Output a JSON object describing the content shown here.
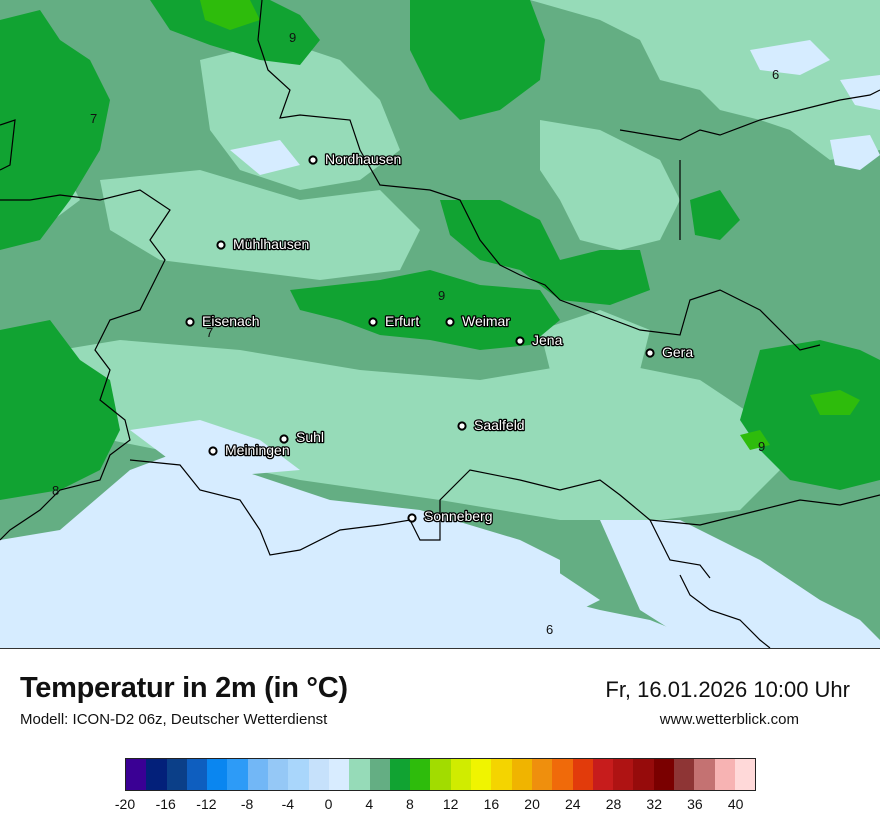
{
  "header": {
    "title": "Temperatur in 2m (in °C)",
    "model": "Modell: ICON-D2 06z, Deutscher Wetterdienst",
    "datetime": "Fr, 16.01.2026 10:00 Uhr",
    "website": "www.wetterblick.com"
  },
  "map": {
    "cities": [
      {
        "name": "Nordhausen",
        "key": "nordhausen"
      },
      {
        "name": "Mühlhausen",
        "key": "muehlhausen"
      },
      {
        "name": "Eisenach",
        "key": "eisenach"
      },
      {
        "name": "Erfurt",
        "key": "erfurt"
      },
      {
        "name": "Weimar",
        "key": "weimar"
      },
      {
        "name": "Jena",
        "key": "jena"
      },
      {
        "name": "Gera",
        "key": "gera"
      },
      {
        "name": "Saalfeld",
        "key": "saalfeld"
      },
      {
        "name": "Suhl",
        "key": "suhl"
      },
      {
        "name": "Meiningen",
        "key": "meiningen"
      },
      {
        "name": "Sonneberg",
        "key": "sonneberg"
      }
    ],
    "isotherm_labels": [
      "9",
      "6",
      "7",
      "9",
      "7",
      "9",
      "8",
      "6"
    ],
    "temperature_colors": {
      "2-4": "#d6ecff",
      "4-6": "#96dbb8",
      "6-8": "#64ae83",
      "8-10": "#11a332",
      "10-12": "#2ebc0c"
    }
  },
  "legend": {
    "colors": [
      "#3a0094",
      "#03207a",
      "#0b3f88",
      "#0e5ebf",
      "#0a86f0",
      "#2d9bf7",
      "#72b7f6",
      "#95c8f6",
      "#a9d6fb",
      "#c6e1fb",
      "#d8ecff",
      "#96dbb8",
      "#64ae83",
      "#11a332",
      "#2ebc0c",
      "#a2dc00",
      "#d0ec00",
      "#f0f400",
      "#f4d400",
      "#f0b400",
      "#ef8f0d",
      "#f06a0a",
      "#e23b0b",
      "#c71c1c",
      "#af1313",
      "#960b0b",
      "#7a0000",
      "#8e3535",
      "#c47272",
      "#f7b3b3",
      "#ffd9d9"
    ],
    "ticks": [
      "-20",
      "-16",
      "-12",
      "-8",
      "-4",
      "0",
      "4",
      "8",
      "12",
      "16",
      "20",
      "24",
      "28",
      "32",
      "36",
      "40"
    ]
  }
}
